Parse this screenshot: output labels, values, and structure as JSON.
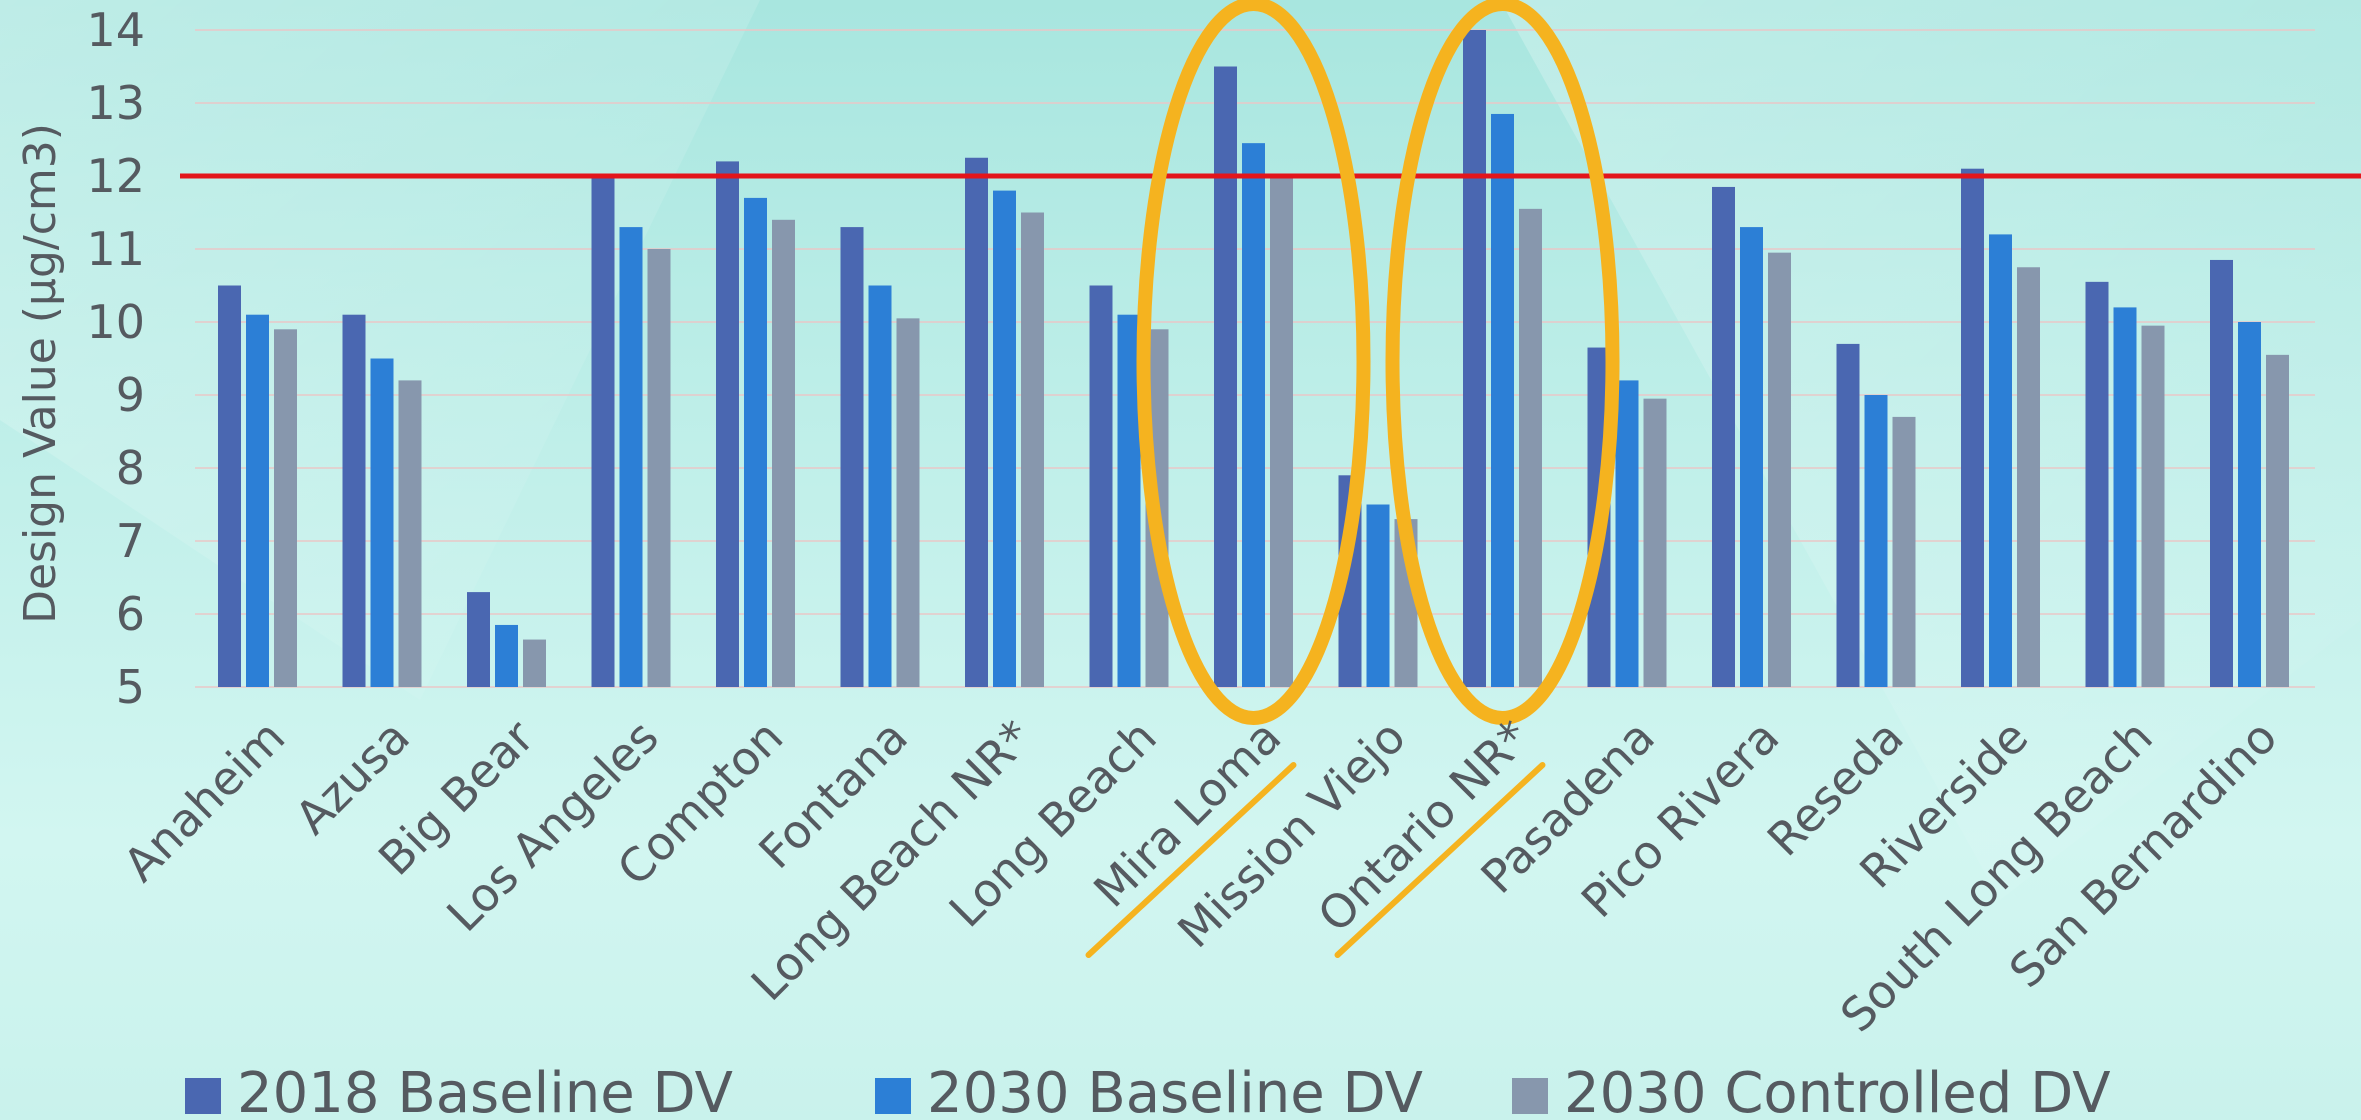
{
  "chart_data": {
    "type": "bar",
    "title": "",
    "xlabel": "",
    "ylabel": "Design Value (µg/cm3)",
    "ylim": [
      5,
      14
    ],
    "yticks": [
      5,
      6,
      7,
      8,
      9,
      10,
      11,
      12,
      13,
      14
    ],
    "grid": true,
    "legend_position": "bottom",
    "categories": [
      "Anaheim",
      "Azusa",
      "Big Bear",
      "Los Angeles",
      "Compton",
      "Fontana",
      "Long Beach NR*",
      "Long Beach",
      "Mira Loma",
      "Mission Viejo",
      "Ontario NR*",
      "Pasadena",
      "Pico Rivera",
      "Reseda",
      "Riverside",
      "South Long Beach",
      "San Bernardino"
    ],
    "series": [
      {
        "name": "2018 Baseline DV",
        "color": "#4a67b1",
        "values": [
          10.5,
          10.1,
          6.3,
          12.0,
          12.2,
          11.3,
          12.25,
          10.5,
          13.5,
          7.9,
          14.0,
          9.65,
          11.85,
          9.7,
          12.1,
          10.55,
          10.85
        ]
      },
      {
        "name": "2030 Baseline DV",
        "color": "#2c7fd6",
        "values": [
          10.1,
          9.5,
          5.85,
          11.3,
          11.7,
          10.5,
          11.8,
          10.1,
          12.45,
          7.5,
          12.85,
          9.2,
          11.3,
          9.0,
          11.2,
          10.2,
          10.0
        ]
      },
      {
        "name": "2030 Controlled DV",
        "color": "#8797ad",
        "values": [
          9.9,
          9.2,
          5.65,
          11.0,
          11.4,
          10.05,
          11.5,
          9.9,
          12.0,
          7.3,
          11.55,
          8.95,
          10.95,
          8.7,
          10.75,
          9.95,
          9.55
        ]
      }
    ],
    "reference_line": {
      "value": 12,
      "color": "#e3151b"
    },
    "highlighted_categories": [
      "Mira Loma",
      "Ontario NR*"
    ],
    "highlight_color": "#f5b31f"
  }
}
